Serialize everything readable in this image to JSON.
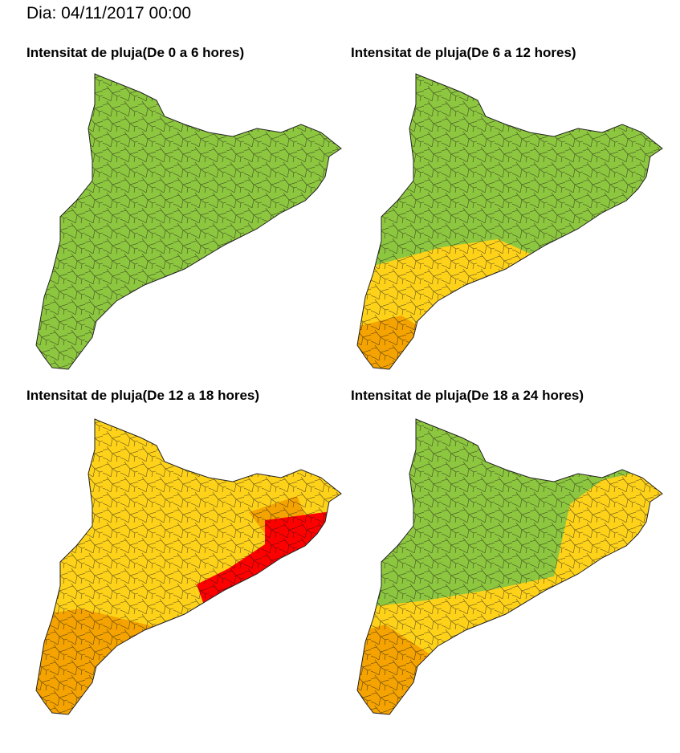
{
  "header": {
    "title": "Dia: 04/11/2017 00:00"
  },
  "panels": [
    {
      "title": "Intensitat de pluja(De 0 a 6 hores)"
    },
    {
      "title": "Intensitat de pluja(De 6 a 12 hores)"
    },
    {
      "title": "Intensitat de pluja(De 12 a 18 hores)"
    },
    {
      "title": "Intensitat de pluja(De 18 a 24 hores)"
    }
  ]
}
